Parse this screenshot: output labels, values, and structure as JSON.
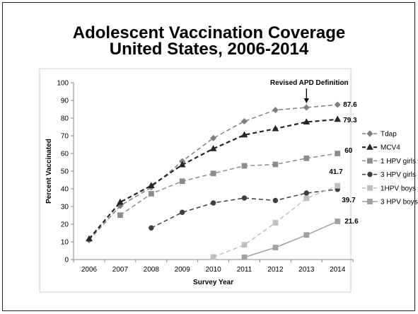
{
  "slide": {
    "title_line1": "Adolescent Vaccination Coverage",
    "title_line2": "United States, 2006-2014"
  },
  "chart_data": {
    "type": "line",
    "title": "",
    "xlabel": "Survey Year",
    "ylabel": "Percent Vaccinated",
    "x": [
      2006,
      2007,
      2008,
      2009,
      2010,
      2011,
      2012,
      2013,
      2014
    ],
    "ylim": [
      0,
      100
    ],
    "yticks": [
      0,
      10,
      20,
      30,
      40,
      50,
      60,
      70,
      80,
      90,
      100
    ],
    "grid": false,
    "legend_position": "right",
    "annotation": "Revised APD Definition",
    "annotation_x": 2013,
    "series": [
      {
        "name": "Tdap",
        "values": [
          11,
          30.4,
          40.8,
          55.6,
          68.7,
          78.2,
          84.6,
          86,
          87.6
        ],
        "color": "#7f7f7f",
        "dash": true,
        "marker": "diamond",
        "width": 1.5,
        "end_label": "87.6"
      },
      {
        "name": "MCV4",
        "values": [
          11.7,
          32.4,
          41.8,
          53.6,
          62.7,
          70.5,
          74,
          77.8,
          79.3
        ],
        "color": "#262626",
        "dash": true,
        "marker": "triangle",
        "width": 2.2,
        "end_label": "79.3"
      },
      {
        "name": "1 HPV girls",
        "values": [
          null,
          25.1,
          37.2,
          44.3,
          48.7,
          53,
          53.8,
          57.3,
          60
        ],
        "color": "#8c8c8c",
        "dash": true,
        "marker": "square",
        "width": 1.5,
        "end_label": "60"
      },
      {
        "name": "3 HPV girls",
        "values": [
          null,
          null,
          17.9,
          26.7,
          32,
          34.8,
          33.4,
          37.6,
          39.7
        ],
        "color": "#3f3f3f",
        "dash": true,
        "marker": "circle",
        "width": 1.5,
        "end_label": "39.7"
      },
      {
        "name": "1HPV boys",
        "values": [
          null,
          null,
          null,
          null,
          1.4,
          8.3,
          20.8,
          34.6,
          41.7
        ],
        "color": "#bfbfbf",
        "dash": true,
        "marker": "square",
        "width": 1.5,
        "end_label": "41.7"
      },
      {
        "name": "3 HPV boys",
        "values": [
          null,
          null,
          null,
          null,
          null,
          1.3,
          6.8,
          13.9,
          21.6
        ],
        "color": "#a0a0a0",
        "dash": false,
        "marker": "square",
        "width": 1.5,
        "end_label": "21.6"
      }
    ]
  }
}
